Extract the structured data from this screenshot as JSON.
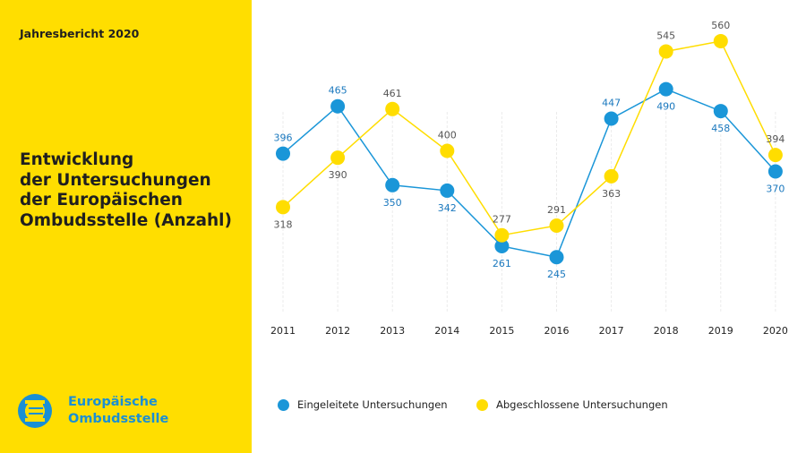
{
  "header": {
    "report_label": "Jahresbericht 2020"
  },
  "title_lines": [
    "Entwicklung",
    "der Untersuchungen",
    "der Europäischen",
    "Ombudsstelle (Anzahl)"
  ],
  "logo": {
    "line1": "Europäische",
    "line2": "Ombudsstelle",
    "icon": "euro-ombudsman-emblem-icon"
  },
  "colors": {
    "sidebar": "#FFDE00",
    "blue": "#1A96D8",
    "yellow": "#FFDD00",
    "blue_label": "#1A78BE",
    "gray_label": "#555555"
  },
  "chart_data": {
    "type": "line",
    "categories": [
      "2011",
      "2012",
      "2013",
      "2014",
      "2015",
      "2016",
      "2017",
      "2018",
      "2019",
      "2020"
    ],
    "series": [
      {
        "name": "Eingeleitete Untersuchungen",
        "color": "#1A96D8",
        "values": [
          396,
          465,
          350,
          342,
          261,
          245,
          447,
          490,
          458,
          370
        ]
      },
      {
        "name": "Abgeschlossene Untersuchungen",
        "color": "#FFDD00",
        "values": [
          318,
          390,
          461,
          400,
          277,
          291,
          363,
          545,
          560,
          394
        ]
      }
    ],
    "ylim": [
      150,
      620
    ],
    "grid": "vertical",
    "legend_position": "bottom"
  }
}
